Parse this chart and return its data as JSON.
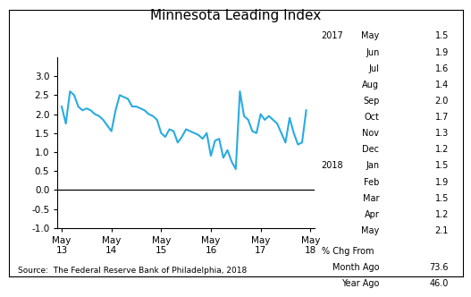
{
  "title": "Minnesota Leading Index",
  "line_color": "#29ABE2",
  "line_width": 1.5,
  "x_labels": [
    "May\n13",
    "May\n14",
    "May\n15",
    "May\n16",
    "May\n17",
    "May\n18"
  ],
  "x_tick_positions": [
    0,
    12,
    24,
    36,
    48,
    60
  ],
  "ylim": [
    -1.0,
    3.5
  ],
  "yticks": [
    -1.0,
    -0.5,
    0.0,
    0.5,
    1.0,
    1.5,
    2.0,
    2.5,
    3.0
  ],
  "y_data": [
    2.2,
    1.75,
    2.6,
    2.5,
    2.2,
    2.1,
    2.15,
    2.1,
    2.0,
    1.95,
    1.85,
    1.7,
    1.55,
    2.1,
    2.5,
    2.45,
    2.4,
    2.2,
    2.2,
    2.15,
    2.1,
    2.0,
    1.95,
    1.85,
    1.5,
    1.4,
    1.6,
    1.55,
    1.25,
    1.4,
    1.6,
    1.55,
    1.5,
    1.45,
    1.35,
    1.5,
    0.9,
    1.3,
    1.35,
    0.85,
    1.05,
    0.75,
    0.55,
    2.6,
    1.95,
    1.85,
    1.55,
    1.5,
    2.0,
    1.85,
    1.95,
    1.85,
    1.75,
    1.5,
    1.25,
    1.9,
    1.5,
    1.2,
    1.25,
    2.1
  ],
  "annotation_2017_label": "2017",
  "annotation_2018_label": "2018",
  "entries_2017": [
    {
      "month": "May",
      "value": "1.5"
    },
    {
      "month": "Jun",
      "value": "1.9"
    },
    {
      "month": "Jul",
      "value": "1.6"
    },
    {
      "month": "Aug",
      "value": "1.4"
    },
    {
      "month": "Sep",
      "value": "2.0"
    },
    {
      "month": "Oct",
      "value": "1.7"
    },
    {
      "month": "Nov",
      "value": "1.3"
    },
    {
      "month": "Dec",
      "value": "1.2"
    }
  ],
  "entries_2018": [
    {
      "month": "Jan",
      "value": "1.5"
    },
    {
      "month": "Feb",
      "value": "1.9"
    },
    {
      "month": "Mar",
      "value": "1.5"
    },
    {
      "month": "Apr",
      "value": "1.2"
    },
    {
      "month": "May",
      "value": "2.1"
    }
  ],
  "pct_chg_label": "% Chg From",
  "month_ago_label": "Month Ago",
  "month_ago_value": "73.6",
  "year_ago_label": "Year Ago",
  "year_ago_value": "46.0",
  "source_text": "Source:  The Federal Reserve Bank of Philadelphia, 2018",
  "background_color": "#ffffff",
  "font_size_annot": 7.0,
  "font_size_title": 11.0,
  "font_size_axis": 7.5,
  "font_size_source": 6.5
}
